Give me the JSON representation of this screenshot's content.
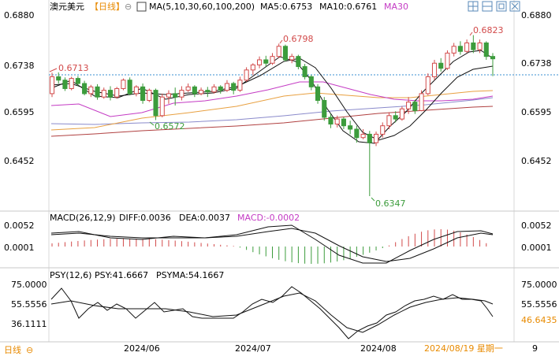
{
  "header": {
    "symbol": "澳元美元",
    "period_tag": "【日线】",
    "ma_label": "MA(5,10,30,60,100,200)",
    "ma5_label": "MA5:0.6753",
    "ma10_label": "MA10:0.6761",
    "ma30_label": "MA30"
  },
  "toolbar": {
    "icons": [
      "expand-icon",
      "layout-icon",
      "window-icon",
      "close-icon"
    ]
  },
  "price_axis": {
    "ticks": [
      "0.6880",
      "0.6738",
      "0.6595",
      "0.6452"
    ]
  },
  "annotations": {
    "high_left": "0.6713",
    "high_mid": "0.6798",
    "high_right": "0.6823",
    "low_left": "0.6572",
    "low_mid": "0.6347"
  },
  "macd": {
    "title": "MACD(26,12,9)",
    "diff": "DIFF:0.0036",
    "dea": "DEA:0.0037",
    "macd": "MACD:-0.0002",
    "ticks": [
      "0.0052",
      "0.0001"
    ]
  },
  "psy": {
    "title": "PSY(12,6)",
    "psy": "PSY:41.6667",
    "psyma": "PSYMA:54.1667",
    "ticks_left": [
      "75.0000",
      "55.5556",
      "36.1111"
    ],
    "ticks_right": [
      "75.0000",
      "55.5556"
    ],
    "current": "46.6435"
  },
  "footer": {
    "period_button": "日线",
    "dates": [
      "2024/06",
      "2024/07",
      "2024/08"
    ],
    "cursor_date": "2024/08/19 星期一",
    "cursor_tail": "9"
  },
  "colors": {
    "up": "#d24a4a",
    "down": "#3c9c3c",
    "ma5": "#111111",
    "ma10": "#111111",
    "ma30": "#c43bc4",
    "ma60": "#e8a040",
    "ma100": "#8a8acb",
    "ma200": "#b04040",
    "accent_orange": "#e88a00",
    "annot_red": "#d24a4a",
    "annot_green": "#3c9c3c"
  },
  "chart_data": {
    "type": "candlestick",
    "candles": [
      [
        0.665,
        0.67,
        0.664,
        0.6712
      ],
      [
        0.67,
        0.669,
        0.668,
        0.6713
      ],
      [
        0.669,
        0.6665,
        0.6658,
        0.6698
      ],
      [
        0.6665,
        0.6695,
        0.666,
        0.67
      ],
      [
        0.6695,
        0.668,
        0.6672,
        0.6702
      ],
      [
        0.668,
        0.665,
        0.6645,
        0.6688
      ],
      [
        0.665,
        0.667,
        0.664,
        0.6676
      ],
      [
        0.667,
        0.664,
        0.6632,
        0.6678
      ],
      [
        0.664,
        0.666,
        0.6635,
        0.6668
      ],
      [
        0.666,
        0.664,
        0.663,
        0.6672
      ],
      [
        0.664,
        0.6665,
        0.6635,
        0.667
      ],
      [
        0.6665,
        0.669,
        0.666,
        0.6695
      ],
      [
        0.669,
        0.665,
        0.6645,
        0.6698
      ],
      [
        0.665,
        0.667,
        0.6642,
        0.6675
      ],
      [
        0.667,
        0.663,
        0.662,
        0.668
      ],
      [
        0.663,
        0.666,
        0.6625,
        0.6665
      ],
      [
        0.666,
        0.6585,
        0.6572,
        0.6665
      ],
      [
        0.6585,
        0.664,
        0.658,
        0.665
      ],
      [
        0.664,
        0.665,
        0.662,
        0.666
      ],
      [
        0.665,
        0.664,
        0.6615,
        0.6668
      ],
      [
        0.664,
        0.666,
        0.663,
        0.6672
      ],
      [
        0.666,
        0.667,
        0.6655,
        0.668
      ],
      [
        0.667,
        0.665,
        0.664,
        0.6675
      ],
      [
        0.665,
        0.666,
        0.6645,
        0.6668
      ],
      [
        0.666,
        0.6655,
        0.664,
        0.667
      ],
      [
        0.6655,
        0.667,
        0.665,
        0.6678
      ],
      [
        0.667,
        0.666,
        0.665,
        0.6675
      ],
      [
        0.666,
        0.668,
        0.6655,
        0.669
      ],
      [
        0.668,
        0.666,
        0.6648,
        0.6685
      ],
      [
        0.666,
        0.669,
        0.6655,
        0.67
      ],
      [
        0.669,
        0.672,
        0.6685,
        0.6728
      ],
      [
        0.672,
        0.6735,
        0.6705,
        0.674
      ],
      [
        0.6735,
        0.675,
        0.6725,
        0.676
      ],
      [
        0.675,
        0.674,
        0.673,
        0.6762
      ],
      [
        0.674,
        0.676,
        0.6735,
        0.677
      ],
      [
        0.676,
        0.679,
        0.6755,
        0.6798
      ],
      [
        0.679,
        0.675,
        0.6745,
        0.6795
      ],
      [
        0.675,
        0.676,
        0.674,
        0.6768
      ],
      [
        0.676,
        0.673,
        0.6722,
        0.6765
      ],
      [
        0.673,
        0.67,
        0.6692,
        0.6738
      ],
      [
        0.67,
        0.667,
        0.666,
        0.6705
      ],
      [
        0.667,
        0.663,
        0.662,
        0.6678
      ],
      [
        0.663,
        0.658,
        0.657,
        0.664
      ],
      [
        0.658,
        0.656,
        0.6548,
        0.659
      ],
      [
        0.656,
        0.6575,
        0.655,
        0.6585
      ],
      [
        0.6575,
        0.6555,
        0.6545,
        0.658
      ],
      [
        0.6555,
        0.6545,
        0.653,
        0.657
      ],
      [
        0.6545,
        0.652,
        0.6505,
        0.6555
      ],
      [
        0.652,
        0.653,
        0.6515,
        0.6545
      ],
      [
        0.653,
        0.6505,
        0.6347,
        0.654
      ],
      [
        0.6505,
        0.653,
        0.6495,
        0.6538
      ],
      [
        0.653,
        0.6555,
        0.652,
        0.6565
      ],
      [
        0.6555,
        0.6585,
        0.6545,
        0.6595
      ],
      [
        0.6585,
        0.6575,
        0.6565,
        0.6598
      ],
      [
        0.6575,
        0.6605,
        0.657,
        0.6612
      ],
      [
        0.6605,
        0.6625,
        0.659,
        0.664
      ],
      [
        0.6625,
        0.66,
        0.659,
        0.6632
      ],
      [
        0.66,
        0.665,
        0.6598,
        0.666
      ],
      [
        0.665,
        0.67,
        0.6645,
        0.671
      ],
      [
        0.67,
        0.674,
        0.669,
        0.675
      ],
      [
        0.674,
        0.6725,
        0.6715,
        0.6755
      ],
      [
        0.6725,
        0.677,
        0.672,
        0.6778
      ],
      [
        0.677,
        0.679,
        0.676,
        0.68
      ],
      [
        0.679,
        0.6775,
        0.6765,
        0.6805
      ],
      [
        0.6775,
        0.68,
        0.677,
        0.681
      ],
      [
        0.68,
        0.678,
        0.677,
        0.6823
      ],
      [
        0.678,
        0.68,
        0.677,
        0.681
      ],
      [
        0.68,
        0.676,
        0.675,
        0.6805
      ],
      [
        0.676,
        0.6753,
        0.6702,
        0.677
      ]
    ],
    "ylim": [
      0.634,
      0.6885
    ],
    "dates": [
      "2024/06",
      "2024/07",
      "2024/08"
    ]
  }
}
